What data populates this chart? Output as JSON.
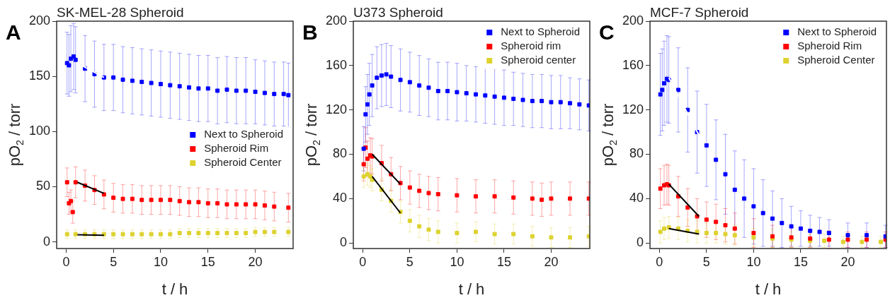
{
  "chart_data": [
    {
      "type": "scatter",
      "title": "SK-MEL-28 Spheroid",
      "xlabel": "t / h",
      "ylabel": "pO$_{2}$ / torr",
      "annotations": [
        "A"
      ],
      "xlim": [
        -1,
        24
      ],
      "ylim": [
        -6,
        200
      ],
      "xticks": [
        0,
        5,
        10,
        15,
        20
      ],
      "yticks": [
        0,
        50,
        100,
        150,
        200
      ],
      "grid": false,
      "legend": "center right",
      "marker": "square",
      "series": [
        {
          "name": "Next to Spheroid",
          "color": "#0000ff",
          "x": [
            0.1,
            0.3,
            0.5,
            0.8,
            1,
            2,
            3,
            4,
            5,
            6,
            7,
            8,
            9,
            10,
            11,
            12,
            13,
            14,
            15,
            16,
            17,
            18,
            19,
            20,
            21,
            22,
            23,
            23.5
          ],
          "values": [
            162,
            160,
            166,
            168,
            165,
            157,
            152,
            149,
            149,
            147,
            146,
            145,
            144,
            143,
            142,
            141,
            140,
            139,
            139,
            137,
            138,
            137,
            137,
            136,
            135,
            134,
            134,
            133
          ],
          "errors": [
            28,
            28,
            30,
            30,
            30,
            30,
            30,
            30,
            30,
            30,
            30,
            30,
            30,
            30,
            30,
            30,
            30,
            30,
            30,
            30,
            30,
            30,
            30,
            29,
            29,
            29,
            29,
            29
          ]
        },
        {
          "name": "Spheroid Rim",
          "color": "#ff0000",
          "x": [
            0.1,
            0.3,
            0.5,
            0.7,
            1,
            2,
            3,
            4,
            5,
            6,
            7,
            8,
            9,
            10,
            11,
            12,
            13,
            14,
            15,
            16,
            17,
            18,
            19,
            20,
            21,
            22,
            23.5
          ],
          "values": [
            54,
            35,
            37,
            27,
            54,
            51,
            47,
            43,
            40,
            39,
            39,
            38,
            38,
            38,
            38,
            37,
            36,
            36,
            35,
            35,
            34,
            34,
            34,
            34,
            33,
            32,
            31
          ],
          "errors": [
            13,
            10,
            10,
            10,
            14,
            14,
            13,
            13,
            13,
            13,
            13,
            13,
            13,
            13,
            13,
            13,
            13,
            13,
            13,
            13,
            13,
            13,
            13,
            13,
            13,
            13,
            13
          ]
        },
        {
          "name": "Spheroid Center",
          "color": "#ddd22f",
          "x": [
            0.1,
            1,
            2,
            3,
            4,
            5,
            6,
            7,
            8,
            9,
            10,
            11,
            12,
            13,
            14,
            15,
            16,
            17,
            18,
            19,
            20,
            21,
            22,
            23.5
          ],
          "values": [
            7,
            7,
            7,
            7,
            7,
            7,
            7,
            7,
            7,
            7,
            7,
            7,
            8,
            8,
            8,
            8,
            8,
            8,
            8,
            8,
            9,
            9,
            9,
            9
          ],
          "errors": [
            4,
            4,
            4,
            4,
            4,
            4,
            4,
            4,
            4,
            4,
            4,
            4,
            4,
            4,
            4,
            4,
            4,
            4,
            4,
            4,
            4,
            4,
            4,
            4
          ]
        },
        {
          "type": "line",
          "marker": "none",
          "color": "#ffffff",
          "x": [
            1.2,
            4
          ],
          "values": [
            162,
            149
          ]
        },
        {
          "type": "line",
          "marker": "none",
          "color": "#000000",
          "x": [
            1.2,
            4
          ],
          "values": [
            54,
            44
          ]
        },
        {
          "type": "line",
          "marker": "none",
          "color": "#000000",
          "x": [
            1.2,
            4
          ],
          "values": [
            6.5,
            6
          ]
        }
      ]
    },
    {
      "type": "scatter",
      "title": "U373 Spheroid",
      "xlabel": "t / h",
      "ylabel": "pO$_{2}$ / torr",
      "annotations": [
        "B"
      ],
      "xlim": [
        -1,
        24.1
      ],
      "ylim": [
        -5,
        200
      ],
      "xticks": [
        0,
        5,
        10,
        15,
        20
      ],
      "yticks": [
        0,
        40,
        80,
        120,
        160,
        200
      ],
      "grid": false,
      "legend": "top right",
      "marker": "square",
      "series": [
        {
          "name": "Next to Spheroid",
          "color": "#0000ff",
          "x": [
            0.1,
            0.3,
            0.5,
            0.7,
            1,
            1.5,
            2,
            2.5,
            3,
            4,
            5,
            6,
            7,
            8,
            9,
            10,
            11,
            12,
            13,
            14,
            15,
            16,
            17,
            18,
            19,
            20,
            21,
            22,
            23,
            24
          ],
          "values": [
            85,
            116,
            125,
            134,
            142,
            149,
            151,
            152,
            150,
            147,
            145,
            142,
            140,
            137,
            137,
            136,
            135,
            134,
            133,
            132,
            131,
            130,
            129,
            128,
            128,
            127,
            127,
            126,
            125,
            124
          ],
          "errors": [
            20,
            25,
            27,
            28,
            28,
            28,
            28,
            28,
            28,
            28,
            27,
            27,
            26,
            26,
            26,
            26,
            25,
            25,
            25,
            25,
            25,
            24,
            24,
            24,
            24,
            24,
            24,
            23,
            23,
            23
          ]
        },
        {
          "name": "Spheroid rim",
          "color": "#ff0000",
          "x": [
            0.1,
            0.3,
            0.5,
            0.8,
            1,
            2,
            3,
            4,
            5,
            6,
            7,
            8,
            10,
            12,
            14,
            16,
            18,
            19,
            20,
            22,
            24
          ],
          "values": [
            71,
            86,
            76,
            79,
            78,
            72,
            62,
            54,
            50,
            47,
            45,
            44,
            43,
            42,
            42,
            41,
            40,
            39,
            40,
            40,
            40
          ],
          "errors": [
            15,
            18,
            16,
            16,
            16,
            16,
            15,
            15,
            15,
            15,
            15,
            15,
            15,
            15,
            15,
            15,
            15,
            15,
            15,
            15,
            15
          ]
        },
        {
          "name": "Spheroid center",
          "color": "#ddd22f",
          "x": [
            0.1,
            0.5,
            0.8,
            1,
            2,
            3,
            4,
            5,
            6,
            7,
            8,
            10,
            12,
            14,
            16,
            18,
            20,
            22,
            24
          ],
          "values": [
            60,
            62,
            60,
            57,
            48,
            38,
            28,
            20,
            15,
            12,
            10,
            9,
            10,
            8,
            8,
            6,
            5,
            5,
            6
          ],
          "errors": [
            10,
            10,
            10,
            10,
            10,
            10,
            10,
            10,
            10,
            10,
            10,
            9,
            9,
            9,
            9,
            9,
            9,
            9,
            9
          ]
        },
        {
          "type": "line",
          "marker": "none",
          "color": "#000000",
          "x": [
            1,
            4
          ],
          "values": [
            80,
            53
          ]
        },
        {
          "type": "line",
          "marker": "none",
          "color": "#000000",
          "x": [
            1,
            4
          ],
          "values": [
            60,
            27
          ]
        }
      ]
    },
    {
      "type": "scatter",
      "title": "MCF-7 Spheroid",
      "xlabel": "t / h",
      "ylabel": "pO$_{2}$ / torr",
      "annotations": [
        "C"
      ],
      "xlim": [
        -1,
        24.1
      ],
      "ylim": [
        -5,
        200
      ],
      "xticks": [
        0,
        5,
        10,
        15,
        20
      ],
      "yticks": [
        0,
        40,
        80,
        120,
        160,
        200
      ],
      "grid": false,
      "legend": "top right",
      "marker": "square",
      "series": [
        {
          "name": "Next to Spheroid",
          "color": "#0000ff",
          "x": [
            0.1,
            0.3,
            0.5,
            0.8,
            1,
            2,
            3,
            4,
            5,
            6,
            7,
            8,
            9,
            10,
            11,
            12,
            13,
            14,
            15,
            16,
            17,
            18,
            20,
            22,
            24
          ],
          "values": [
            134,
            138,
            144,
            148,
            147,
            138,
            120,
            100,
            88,
            75,
            62,
            48,
            40,
            33,
            27,
            22,
            18,
            15,
            13,
            11,
            10,
            9,
            7,
            7,
            6
          ],
          "errors": [
            37,
            37,
            38,
            39,
            39,
            38,
            38,
            37,
            37,
            36,
            36,
            35,
            35,
            34,
            30,
            25,
            22,
            18,
            16,
            14,
            13,
            12,
            11,
            11,
            10
          ]
        },
        {
          "name": "Spheroid Rim",
          "color": "#ff0000",
          "x": [
            0.1,
            0.5,
            0.8,
            1,
            2,
            3,
            4,
            5,
            6,
            7,
            8,
            10,
            12,
            14,
            16,
            18,
            20,
            22,
            24
          ],
          "values": [
            49,
            52,
            53,
            52,
            42,
            32,
            24,
            21,
            19,
            16,
            13,
            9,
            6,
            5,
            4,
            3,
            3,
            3,
            3
          ],
          "errors": [
            18,
            18,
            18,
            18,
            18,
            17,
            16,
            16,
            16,
            15,
            14,
            13,
            10,
            9,
            8,
            8,
            7,
            7,
            7
          ]
        },
        {
          "name": "Spheroid Center",
          "color": "#ddd22f",
          "x": [
            0.1,
            0.5,
            1,
            2,
            3,
            4,
            5,
            6,
            7,
            8,
            10,
            12,
            14,
            16,
            17.5,
            19.5,
            21.5,
            23.5
          ],
          "values": [
            10,
            13,
            14,
            13,
            11,
            10,
            9,
            9,
            8,
            7,
            5,
            4,
            3,
            2,
            2,
            1,
            1,
            1
          ],
          "errors": [
            10,
            10,
            10,
            10,
            10,
            10,
            9,
            9,
            9,
            9,
            8,
            8,
            7,
            6,
            6,
            5,
            5,
            5
          ]
        },
        {
          "type": "line",
          "marker": "none",
          "color": "#ffffff",
          "x": [
            1,
            4.2
          ],
          "values": [
            149,
            97
          ]
        },
        {
          "type": "line",
          "marker": "none",
          "color": "#000000",
          "x": [
            1,
            4.2
          ],
          "values": [
            53,
            24
          ]
        },
        {
          "type": "line",
          "marker": "none",
          "color": "#000000",
          "x": [
            1,
            4.2
          ],
          "values": [
            13,
            8
          ]
        }
      ]
    }
  ]
}
